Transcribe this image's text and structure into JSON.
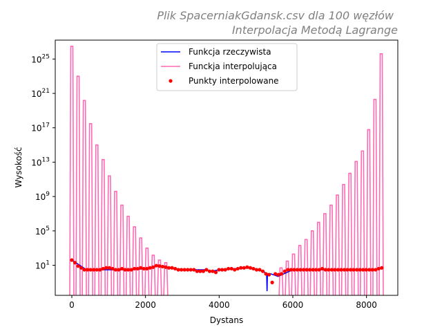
{
  "chart_data": {
    "type": "line",
    "title_lines": [
      "Plik SpacerniakGdansk.csv dla 100 węzłów",
      "Interpolacja Metodą Lagrange"
    ],
    "xlabel": "Dystans",
    "ylabel": "Wysokość",
    "xlim": [
      -450,
      8850
    ],
    "ylog_lim": [
      -2.5,
      27.2
    ],
    "yscale": "log",
    "x_ticks": [
      0,
      2000,
      4000,
      6000,
      8000
    ],
    "x_tick_labels": [
      "0",
      "2000",
      "4000",
      "6000",
      "8000"
    ],
    "y_tick_exponents": [
      1,
      5,
      9,
      13,
      17,
      21,
      25
    ],
    "y_tick_base": "10",
    "legend": {
      "position": "upper center",
      "entries": [
        {
          "label": "Funkcja rzeczywista",
          "color": "#0000ff",
          "style": "line"
        },
        {
          "label": "Funckja interpolująca",
          "color": "#ff69b4",
          "style": "line"
        },
        {
          "label": "Punkty interpolowane",
          "color": "#ff0000",
          "style": "marker"
        }
      ]
    },
    "grid": false,
    "series": [
      {
        "name": "Funkcja rzeczywista",
        "color": "#0000ff",
        "x": [
          0,
          400,
          800,
          1200,
          1600,
          2000,
          2400,
          2800,
          3200,
          3600,
          3800,
          4000,
          4400,
          4800,
          5000,
          5200,
          5290,
          5300,
          5310,
          5400,
          5600,
          6000,
          6400,
          6800,
          7200,
          7600,
          8000,
          8400
        ],
        "y": [
          40,
          3,
          3,
          3,
          3,
          4,
          9,
          4,
          3,
          3,
          2,
          3,
          4,
          5,
          3,
          2,
          1,
          0.01,
          1,
          1,
          0.5,
          3,
          3,
          3,
          3,
          3,
          3,
          4
        ]
      },
      {
        "name": "Funckja interpolująca",
        "color": "#ff69b4",
        "x": [
          0,
          170,
          340,
          510,
          680,
          850,
          1020,
          1190,
          1360,
          1530,
          1700,
          1870,
          2040,
          2210,
          2380,
          2550,
          5680,
          5850,
          6020,
          6190,
          6360,
          6530,
          6700,
          6870,
          7040,
          7210,
          7380,
          7550,
          7720,
          7890,
          8060,
          8230,
          8400
        ],
        "y": [
          3e+26,
          1e+23,
          1.5e+20,
          3e+17,
          1000000000000000.0,
          20000000000000.0,
          250000000000.0,
          4000000000.0,
          100000000.0,
          5000000.0,
          300000.0,
          15000.0,
          1000,
          150,
          40,
          20,
          5,
          30,
          200,
          2000,
          10000.0,
          100000.0,
          1000000.0,
          10000000.0,
          100000000.0,
          1500000000.0,
          25000000000.0,
          500000000000.0,
          12000000000000.0,
          200000000000000.0,
          6e+16,
          2e+20,
          4e+25
        ]
      },
      {
        "name": "Punkty interpolowane",
        "color": "#ff0000",
        "x": [
          0,
          85,
          170,
          255,
          340,
          425,
          510,
          595,
          680,
          765,
          850,
          935,
          1020,
          1105,
          1190,
          1275,
          1360,
          1445,
          1530,
          1615,
          1700,
          1785,
          1870,
          1955,
          2040,
          2125,
          2210,
          2295,
          2380,
          2465,
          2550,
          2635,
          2720,
          2805,
          2890,
          2975,
          3060,
          3145,
          3230,
          3315,
          3400,
          3485,
          3570,
          3655,
          3740,
          3825,
          3910,
          3995,
          4080,
          4165,
          4250,
          4335,
          4420,
          4505,
          4590,
          4675,
          4760,
          4845,
          4930,
          5015,
          5100,
          5185,
          5270,
          5355,
          5440,
          5525,
          5610,
          5695,
          5780,
          5865,
          5950,
          6035,
          6120,
          6205,
          6290,
          6375,
          6460,
          6545,
          6630,
          6715,
          6800,
          6885,
          6970,
          7055,
          7140,
          7225,
          7310,
          7395,
          7480,
          7565,
          7650,
          7735,
          7820,
          7905,
          7990,
          8075,
          8160,
          8245,
          8330,
          8415
        ],
        "y": [
          40,
          20,
          8,
          5,
          3,
          3,
          3,
          3,
          3,
          3,
          4,
          5,
          5,
          4,
          3,
          3,
          4,
          3,
          3,
          3,
          4,
          4,
          5,
          4,
          4,
          5,
          6,
          9,
          8,
          7,
          6,
          5,
          5,
          4,
          3,
          3,
          3,
          3,
          3,
          3,
          2,
          2,
          2,
          3,
          2,
          2,
          1.5,
          3,
          3,
          3,
          4,
          4,
          3,
          4,
          5,
          5,
          6,
          5,
          4,
          3,
          3,
          2,
          1,
          0.8,
          0.1,
          1,
          0.8,
          1,
          2,
          3,
          3,
          3,
          3,
          3,
          3,
          3,
          3,
          3,
          3,
          3,
          4,
          3,
          3,
          3,
          3,
          3,
          3,
          3,
          3,
          3,
          3,
          3,
          3,
          3,
          3,
          3,
          3,
          3,
          4,
          5
        ]
      }
    ]
  }
}
